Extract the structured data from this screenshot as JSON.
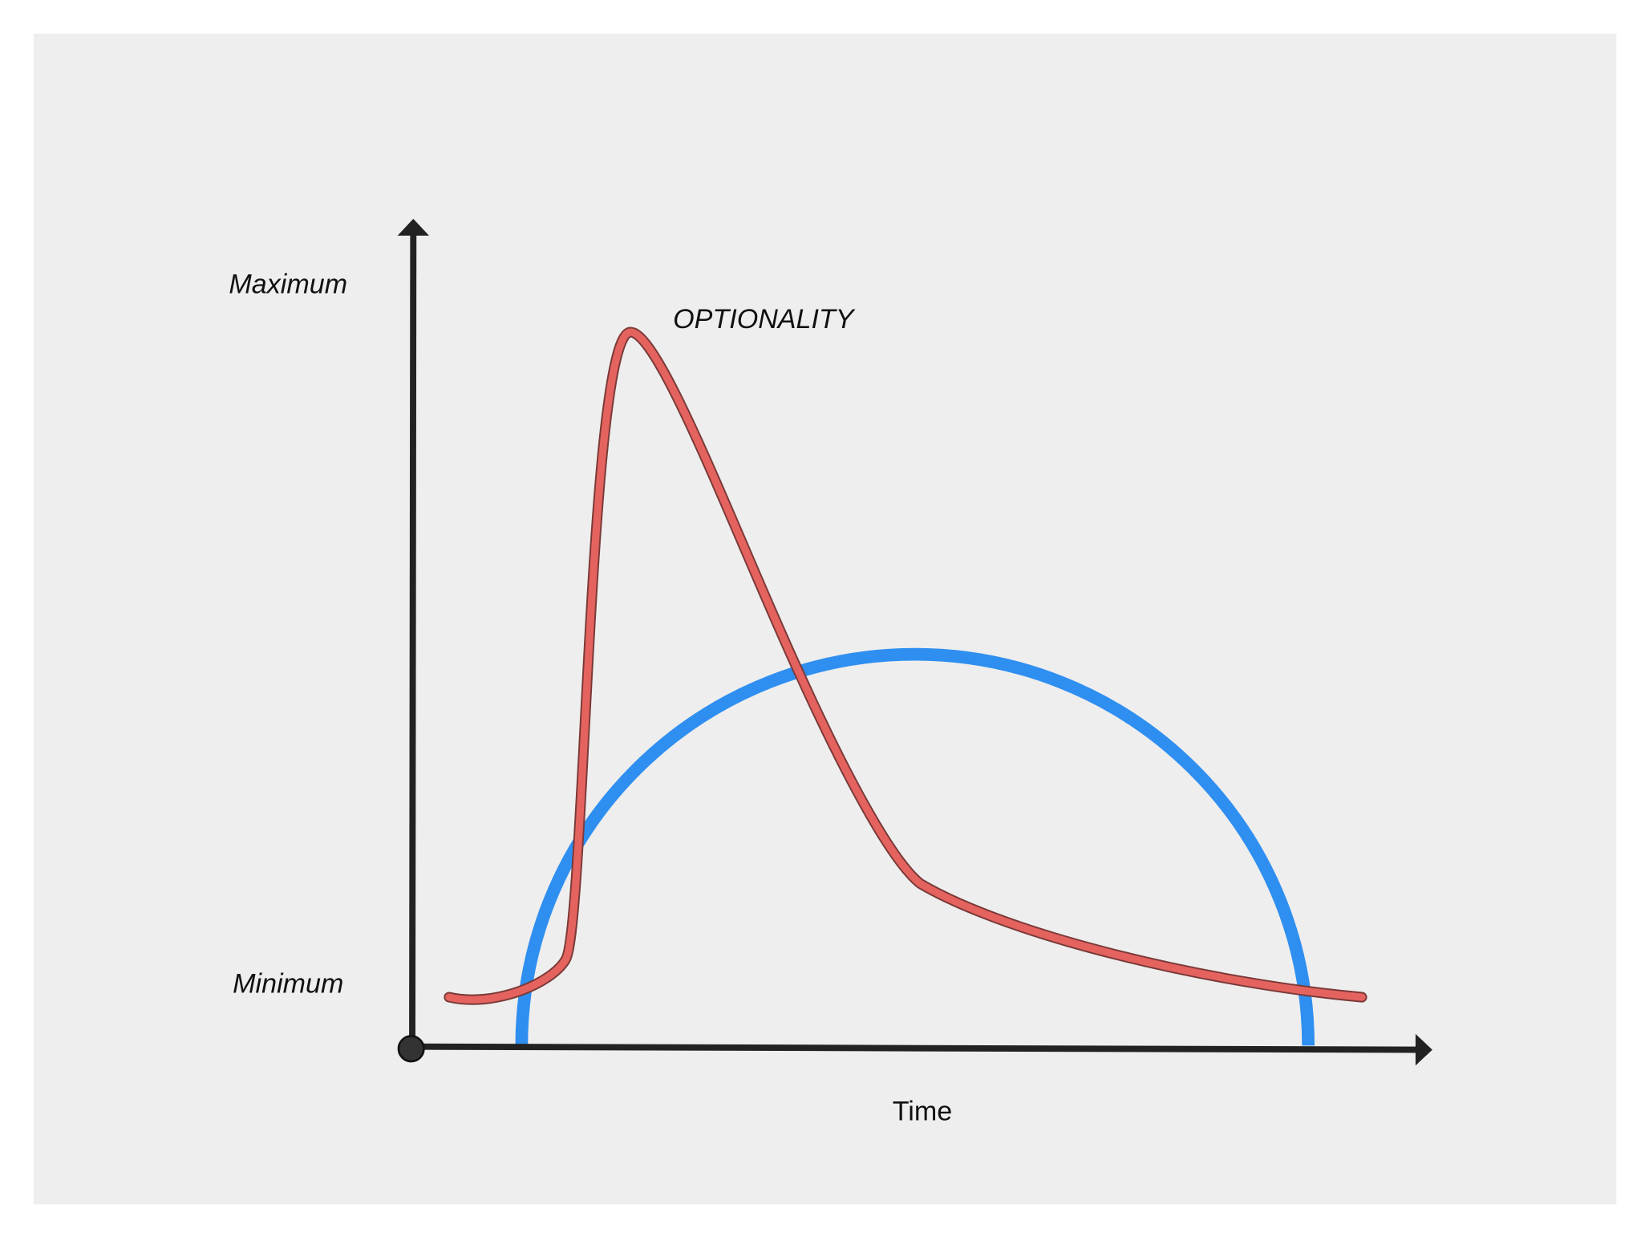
{
  "labels": {
    "maximum": "Maximum",
    "minimum": "Minimum",
    "curve": "OPTIONALITY",
    "x_axis": "Time"
  }
}
